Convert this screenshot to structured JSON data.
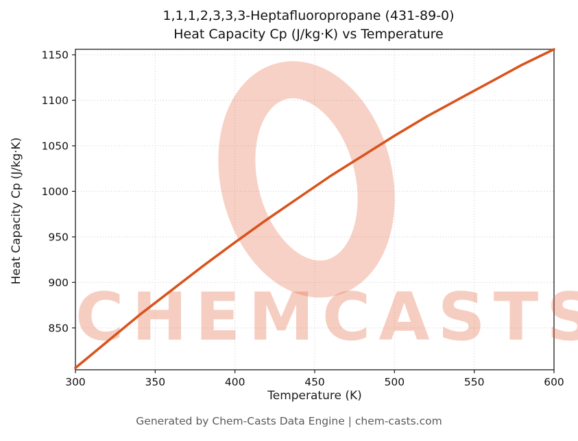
{
  "title": {
    "line1": "1,1,1,2,3,3,3-Heptafluoropropane (431-89-0)",
    "line2": "Heat Capacity Cp (J/kg·K) vs Temperature"
  },
  "watermark": {
    "text": "CHEMCASTS",
    "color": "#e25832"
  },
  "footer": {
    "text": "Generated by Chem-Casts Data Engine | chem-casts.com"
  },
  "colors": {
    "line": "#d9531c",
    "grid": "#c9c9c9",
    "axis": "#1a1a1a",
    "tick_text": "#111111",
    "footer_text": "#595959"
  },
  "chart_data": {
    "type": "line",
    "title": "1,1,1,2,3,3,3-Heptafluoropropane (431-89-0) — Heat Capacity Cp (J/kg·K) vs Temperature",
    "xlabel": "Temperature (K)",
    "ylabel": "Heat Capacity Cp (J/kg·K)",
    "xlim": [
      300,
      600
    ],
    "ylim": [
      804,
      1156
    ],
    "xticks": [
      300,
      350,
      400,
      450,
      500,
      550,
      600
    ],
    "yticks": [
      850,
      900,
      950,
      1000,
      1050,
      1100,
      1150
    ],
    "grid": true,
    "legend": "none",
    "series": [
      {
        "name": "Cp",
        "x": [
          300,
          320,
          340,
          360,
          380,
          400,
          420,
          440,
          460,
          480,
          500,
          520,
          540,
          560,
          580,
          600
        ],
        "values": [
          806,
          835,
          864,
          891,
          918,
          944,
          969,
          993,
          1017,
          1039,
          1061,
          1082,
          1101,
          1120,
          1139,
          1156
        ]
      }
    ]
  }
}
